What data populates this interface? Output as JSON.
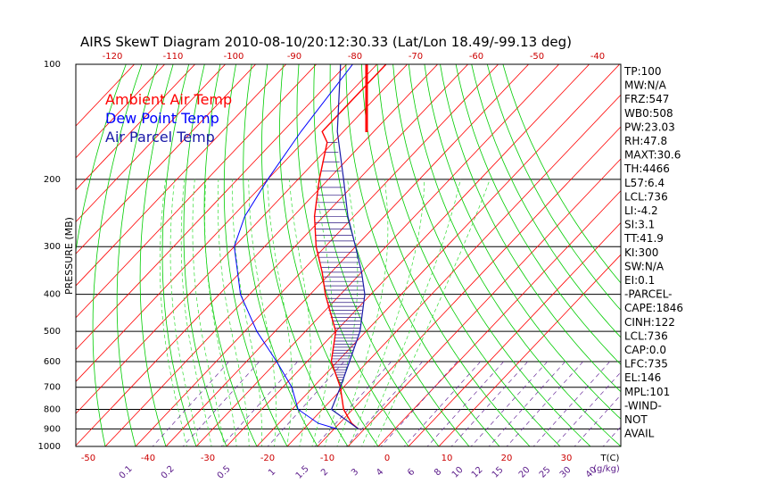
{
  "chart_data": {
    "type": "line",
    "title": "AIRS SkewT Diagram 2010-08-10/20:12:30.33 (Lat/Lon 18.49/-99.13 deg)",
    "ylabel": "PRESSURE (MB)",
    "xlabel_unit": "T(C)",
    "mixing_unit": "(g/kg)",
    "pressure_levels": [
      100,
      200,
      300,
      400,
      500,
      600,
      700,
      800,
      900,
      1000
    ],
    "bottom_temp_ticks": [
      -50,
      -40,
      -30,
      -20,
      -10,
      0,
      10,
      20,
      30
    ],
    "top_temp_ticks": [
      -120,
      -110,
      -100,
      -90,
      -80,
      -70,
      -60,
      -50,
      -40
    ],
    "mixing_ratio_labels": [
      "0.1",
      "0.2",
      "0.5",
      "1",
      "1.5",
      "2",
      "3",
      "4",
      "6",
      "8",
      "10",
      "12",
      "15",
      "20",
      "25",
      "30",
      "40"
    ],
    "legend": [
      {
        "label": "Ambient Air Temp",
        "color": "#ff0000"
      },
      {
        "label": "Dew Point Temp",
        "color": "#0000ff"
      },
      {
        "label": "Air Parcel Temp",
        "color": "#1a1aa8"
      }
    ],
    "series": [
      {
        "name": "Ambient Air Temp",
        "points": [
          [
            100,
            -77
          ],
          [
            150,
            -77
          ],
          [
            160,
            -72
          ],
          [
            200,
            -63
          ],
          [
            250,
            -53
          ],
          [
            300,
            -43
          ],
          [
            350,
            -33
          ],
          [
            400,
            -25
          ],
          [
            500,
            -10
          ],
          [
            600,
            -2
          ],
          [
            700,
            9
          ],
          [
            800,
            17
          ],
          [
            870,
            24
          ],
          [
            900,
            28
          ]
        ]
      },
      {
        "name": "Dew Point Temp",
        "points": [
          [
            100,
            -88
          ],
          [
            150,
            -84
          ],
          [
            200,
            -80
          ],
          [
            250,
            -76
          ],
          [
            300,
            -70
          ],
          [
            400,
            -53
          ],
          [
            500,
            -36
          ],
          [
            600,
            -20
          ],
          [
            700,
            -7
          ],
          [
            800,
            2
          ],
          [
            870,
            13
          ],
          [
            900,
            21
          ]
        ]
      },
      {
        "name": "Air Parcel Temp",
        "points": [
          [
            100,
            -92
          ],
          [
            150,
            -72
          ],
          [
            200,
            -55
          ],
          [
            250,
            -42
          ],
          [
            300,
            -30
          ],
          [
            350,
            -20
          ],
          [
            400,
            -12
          ],
          [
            500,
            -2
          ],
          [
            600,
            4
          ],
          [
            700,
            9
          ],
          [
            800,
            13
          ],
          [
            900,
            28
          ]
        ]
      }
    ],
    "indices": [
      "TP:100",
      "MW:N/A",
      "FRZ:547",
      "WB0:508",
      "PW:23.03",
      "RH:47.8",
      "MAXT:30.6",
      "TH:4466",
      "L57:6.4",
      "LCL:736",
      "LI:-4.2",
      "SI:3.1",
      "TT:41.9",
      "KI:300",
      "SW:N/A",
      "EI:0.1",
      "-PARCEL-",
      "CAPE:1846",
      "CINH:122",
      "LCL:736",
      "CAP:0.0",
      "LFC:735",
      "EL:146",
      "MPL:101",
      "-WIND-",
      "NOT",
      "AVAIL"
    ],
    "grid": true,
    "legend_position": "top-left"
  },
  "colors": {
    "isotherm": "#ff0000",
    "dry_adiabat": "#00cc00",
    "moist_adiabat": "#33dd33",
    "mixing_ratio": "#6a2d9a",
    "hatch": "#2a1580",
    "isobar": "#000000"
  }
}
